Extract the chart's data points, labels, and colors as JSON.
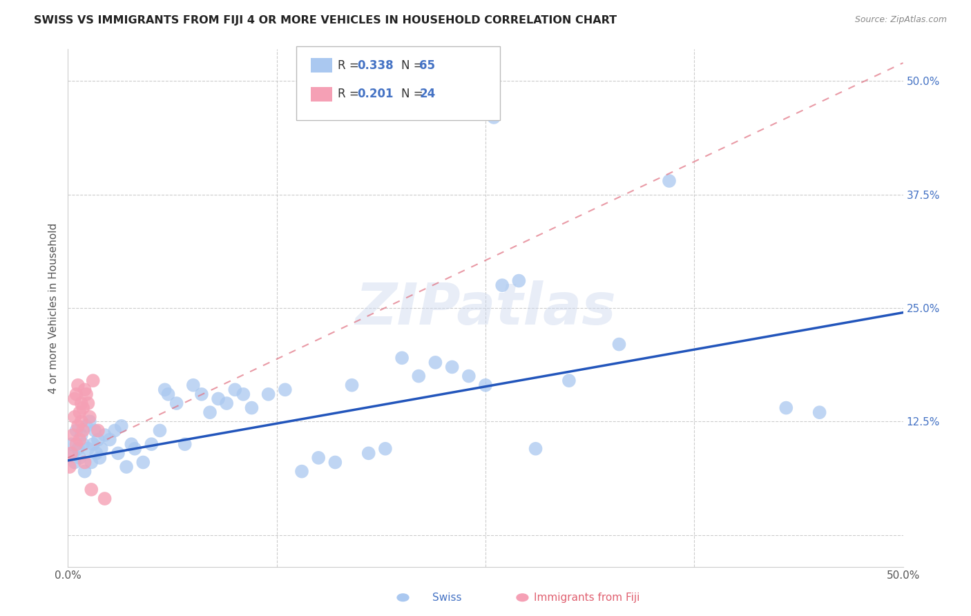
{
  "title": "SWISS VS IMMIGRANTS FROM FIJI 4 OR MORE VEHICLES IN HOUSEHOLD CORRELATION CHART",
  "source": "Source: ZipAtlas.com",
  "ylabel": "4 or more Vehicles in Household",
  "xmin": 0.0,
  "xmax": 0.5,
  "ymin": -0.035,
  "ymax": 0.535,
  "swiss_R": 0.338,
  "swiss_N": 65,
  "fiji_R": 0.201,
  "fiji_N": 24,
  "swiss_color": "#aac8f0",
  "fiji_color": "#f5a0b5",
  "swiss_line_color": "#2255bb",
  "fiji_line_color": "#e07080",
  "watermark": "ZIPatlas",
  "swiss_x": [
    0.002,
    0.003,
    0.004,
    0.005,
    0.006,
    0.007,
    0.008,
    0.009,
    0.01,
    0.011,
    0.012,
    0.013,
    0.014,
    0.015,
    0.016,
    0.017,
    0.018,
    0.019,
    0.02,
    0.022,
    0.025,
    0.028,
    0.03,
    0.032,
    0.035,
    0.038,
    0.04,
    0.045,
    0.05,
    0.055,
    0.058,
    0.06,
    0.065,
    0.07,
    0.075,
    0.08,
    0.085,
    0.09,
    0.095,
    0.1,
    0.105,
    0.11,
    0.12,
    0.13,
    0.14,
    0.15,
    0.16,
    0.17,
    0.18,
    0.19,
    0.2,
    0.21,
    0.22,
    0.23,
    0.24,
    0.25,
    0.255,
    0.26,
    0.27,
    0.28,
    0.3,
    0.33,
    0.36,
    0.43,
    0.45
  ],
  "swiss_y": [
    0.1,
    0.09,
    0.08,
    0.115,
    0.095,
    0.085,
    0.11,
    0.1,
    0.07,
    0.12,
    0.095,
    0.125,
    0.08,
    0.1,
    0.115,
    0.09,
    0.105,
    0.085,
    0.095,
    0.11,
    0.105,
    0.115,
    0.09,
    0.12,
    0.075,
    0.1,
    0.095,
    0.08,
    0.1,
    0.115,
    0.16,
    0.155,
    0.145,
    0.1,
    0.165,
    0.155,
    0.135,
    0.15,
    0.145,
    0.16,
    0.155,
    0.14,
    0.155,
    0.16,
    0.07,
    0.085,
    0.08,
    0.165,
    0.09,
    0.095,
    0.195,
    0.175,
    0.19,
    0.185,
    0.175,
    0.165,
    0.46,
    0.275,
    0.28,
    0.095,
    0.17,
    0.21,
    0.39,
    0.14,
    0.135
  ],
  "fiji_x": [
    0.001,
    0.002,
    0.003,
    0.004,
    0.004,
    0.005,
    0.005,
    0.006,
    0.006,
    0.007,
    0.007,
    0.008,
    0.008,
    0.009,
    0.009,
    0.01,
    0.01,
    0.011,
    0.012,
    0.013,
    0.014,
    0.015,
    0.018,
    0.022
  ],
  "fiji_y": [
    0.075,
    0.09,
    0.11,
    0.13,
    0.15,
    0.1,
    0.155,
    0.12,
    0.165,
    0.105,
    0.135,
    0.125,
    0.145,
    0.115,
    0.14,
    0.08,
    0.16,
    0.155,
    0.145,
    0.13,
    0.05,
    0.17,
    0.115,
    0.04
  ],
  "swiss_line_x0": 0.0,
  "swiss_line_y0": 0.082,
  "swiss_line_x1": 0.5,
  "swiss_line_y1": 0.245,
  "fiji_line_x0": 0.0,
  "fiji_line_y0": 0.085,
  "fiji_line_x1": 0.5,
  "fiji_line_y1": 0.52
}
